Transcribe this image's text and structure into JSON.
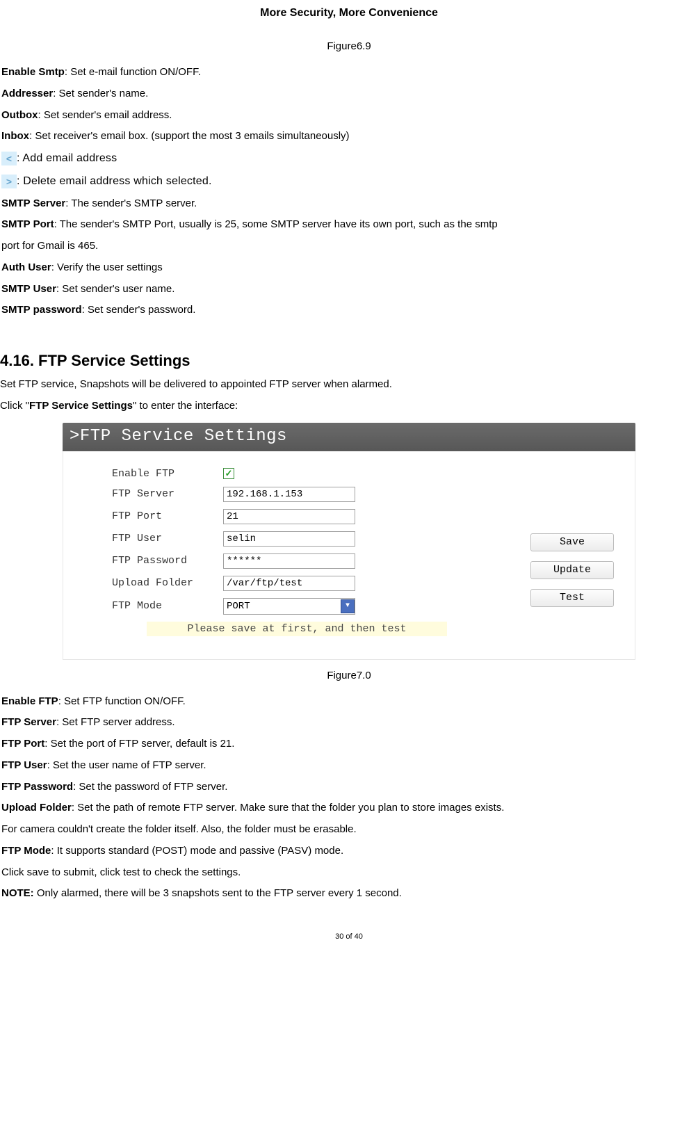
{
  "header": {
    "title": "More Security, More Convenience"
  },
  "fig1": {
    "caption": "Figure6.9"
  },
  "smtp": {
    "enable_term": "Enable Smtp",
    "enable_desc": ": Set e-mail function ON/OFF.",
    "addresser_term": "Addresser",
    "addresser_desc": ": Set sender's name.",
    "outbox_term": "Outbox",
    "outbox_desc": ": Set sender's email address.",
    "inbox_term": "Inbox",
    "inbox_desc": ": Set receiver's email box. (support the most 3 emails simultaneously)",
    "add_icon_desc": ": Add email address",
    "del_icon_desc": ": Delete email address which selected.",
    "server_term": "SMTP Server",
    "server_desc": ": The sender's SMTP server.",
    "port_term": "SMTP Port",
    "port_desc": ": The sender's SMTP Port, usually is 25, some SMTP server have its own port, such as the smtp",
    "port_desc2": "port for Gmail is 465.",
    "auth_term": "Auth User",
    "auth_desc": ": Verify the user settings",
    "user_term": "SMTP User",
    "user_desc": ": Set sender's user name.",
    "pw_term": "SMTP password",
    "pw_desc": ": Set sender's password."
  },
  "section": {
    "heading": "4.16. FTP Service Settings",
    "intro1": "Set FTP service, Snapshots will be delivered to appointed FTP server when alarmed.",
    "intro2a": "Click \"",
    "intro2b": "FTP Service Settings",
    "intro2c": "\" to enter the interface:"
  },
  "ftp_panel": {
    "banner": ">FTP Service Settings",
    "labels": {
      "enable": "Enable FTP",
      "server": "FTP Server",
      "port": "FTP Port",
      "user": "FTP User",
      "password": "FTP Password",
      "folder": "Upload Folder",
      "mode": "FTP Mode"
    },
    "values": {
      "server": "192.168.1.153",
      "port": "21",
      "user": "selin",
      "password": "******",
      "folder": "/var/ftp/test",
      "mode": "PORT"
    },
    "buttons": {
      "save": "Save",
      "update": "Update",
      "test": "Test"
    },
    "hint": "Please save at first, and then test"
  },
  "fig2": {
    "caption": "Figure7.0"
  },
  "ftp": {
    "enable_term": "Enable FTP",
    "enable_desc": ": Set FTP function ON/OFF.",
    "server_term": "FTP Server",
    "server_desc": ": Set FTP server address.",
    "port_term": "FTP Port",
    "port_desc": ": Set the port of FTP server, default is 21.",
    "user_term": "FTP User",
    "user_desc": ": Set the user name of FTP server.",
    "pw_term": "FTP Password",
    "pw_desc": ": Set the password of FTP server.",
    "folder_term": "Upload Folder",
    "folder_desc": ": Set the path of remote FTP server. Make sure that the folder you plan to store images exists.",
    "folder_desc2": "For camera couldn't create the folder itself. Also, the folder must be erasable.",
    "mode_term": "FTP Mode",
    "mode_desc": ": It supports standard (POST) mode and passive (PASV) mode.",
    "save_desc": "Click save to submit, click test to check the settings.",
    "note_term": "NOTE:",
    "note_desc": " Only alarmed, there will be 3 snapshots sent to the FTP server every 1 second."
  },
  "footer": {
    "page": "30 of 40"
  }
}
